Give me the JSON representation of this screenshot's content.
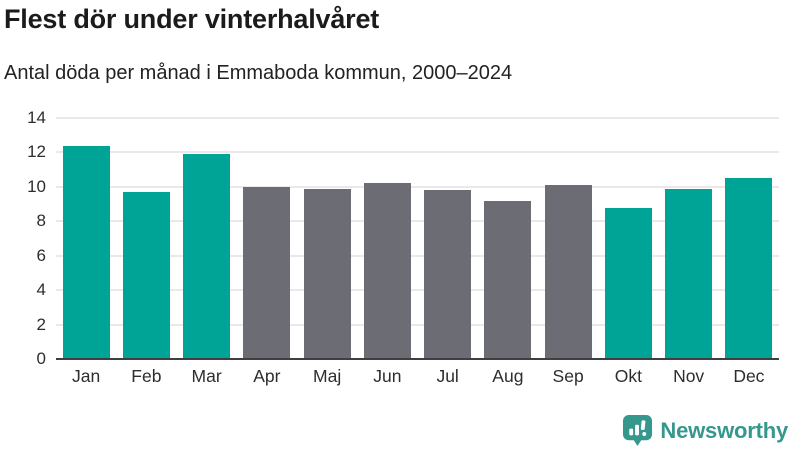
{
  "header": {
    "title": "Flest dör under vinterhalvåret",
    "subtitle": "Antal döda per månad i Emmaboda kommun, 2000–2024"
  },
  "chart_data": {
    "type": "bar",
    "title": "Flest dör under vinterhalvåret",
    "subtitle": "Antal döda per månad i Emmaboda kommun, 2000–2024",
    "categories": [
      "Jan",
      "Feb",
      "Mar",
      "Apr",
      "Maj",
      "Jun",
      "Jul",
      "Aug",
      "Sep",
      "Okt",
      "Nov",
      "Dec"
    ],
    "values": [
      12.4,
      9.7,
      11.9,
      10.0,
      9.9,
      10.2,
      9.8,
      9.2,
      10.1,
      8.8,
      9.9,
      10.5
    ],
    "highlighted": [
      true,
      true,
      true,
      false,
      false,
      false,
      false,
      false,
      false,
      true,
      true,
      true
    ],
    "xlabel": "",
    "ylabel": "",
    "ylim": [
      0,
      14
    ],
    "yticks": [
      0,
      2,
      4,
      6,
      8,
      10,
      12,
      14
    ],
    "grid": true,
    "legend": false,
    "colors": {
      "bar_highlight": "#00a496",
      "bar_base": "#6c6c74",
      "gridline": "#e9e9e9",
      "axis_line": "#3f3f3f"
    }
  },
  "branding": {
    "logo_text": "Newsworthy",
    "logo_icon": "bar-chart-speech-bubble-icon",
    "logo_color": "#36988d"
  }
}
